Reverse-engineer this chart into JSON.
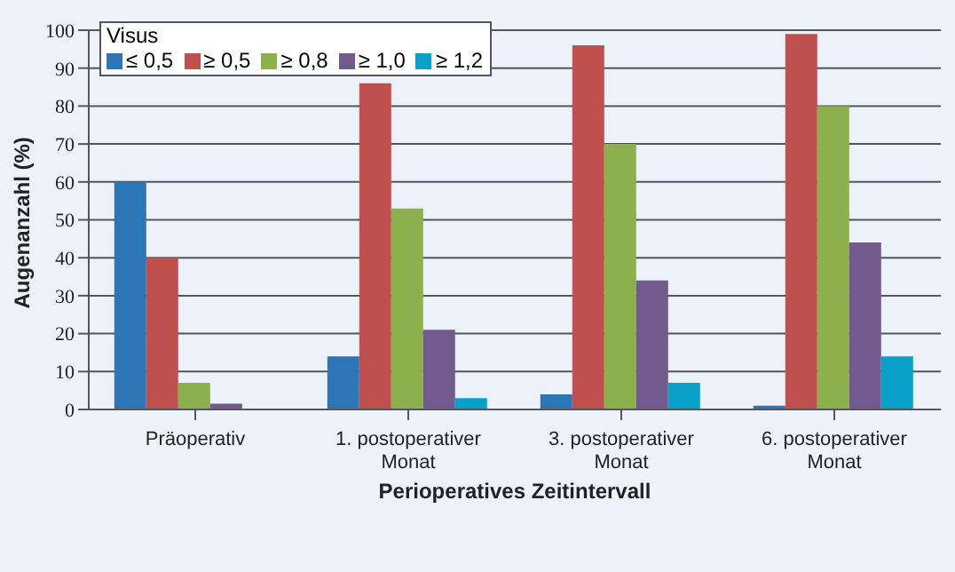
{
  "chart_data": {
    "type": "bar",
    "xlabel": "Perioperatives Zeitintervall",
    "ylabel": "Augenanzahl (%)",
    "legend_title": "Visus",
    "categories": [
      "Präoperativ",
      "1. postoperativer Monat",
      "3. postoperativer Monat",
      "6. postoperativer Monat"
    ],
    "series": [
      {
        "name": "≤ 0,5",
        "color": "#2e75b6",
        "values": [
          60,
          14,
          4,
          1
        ]
      },
      {
        "name": "≥ 0,5",
        "color": "#c0504d",
        "values": [
          40,
          86,
          96,
          99
        ]
      },
      {
        "name": "≥ 0,8",
        "color": "#8db04e",
        "values": [
          7,
          53,
          70,
          80
        ]
      },
      {
        "name": "≥ 1,0",
        "color": "#735a8e",
        "values": [
          1.5,
          21,
          34,
          44
        ]
      },
      {
        "name": "≥ 1,2",
        "color": "#0aa0c8",
        "values": [
          0,
          3,
          7,
          14
        ]
      }
    ],
    "ylim": [
      0,
      100
    ],
    "yticks": [
      0,
      10,
      20,
      30,
      40,
      50,
      60,
      70,
      80,
      90,
      100
    ],
    "grid": "y",
    "legend": "top left"
  }
}
